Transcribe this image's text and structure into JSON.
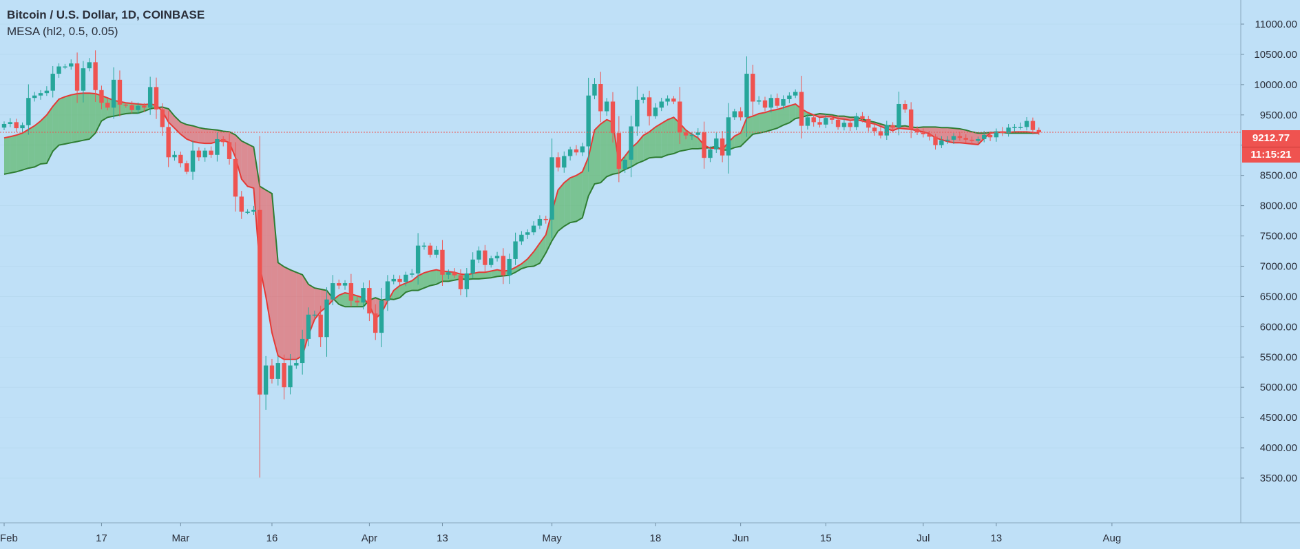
{
  "header": {
    "title": "Bitcoin / U.S. Dollar, 1D, COINBASE",
    "indicator": "MESA (hl2, 0.5, 0.05)"
  },
  "price_tag": {
    "price": "9212.77",
    "countdown": "11:15:21"
  },
  "colors": {
    "background": "#bfe0f7",
    "up": "#26a69a",
    "down": "#ef5350",
    "mama_line": "#e53935",
    "fama_line": "#2e7d32",
    "fill_bull": "#4caf50",
    "fill_bear": "#ef5350",
    "grid": "#a9cbe3"
  },
  "chart_data": {
    "type": "candlestick",
    "title": "Bitcoin / U.S. Dollar, 1D, COINBASE",
    "indicator": "MESA (hl2, 0.5, 0.05)",
    "ylim": [
      3200,
      11300
    ],
    "y_ticks": [
      "11000.00",
      "10500.00",
      "10000.00",
      "9500.00",
      "9000.00",
      "8500.00",
      "8000.00",
      "7500.00",
      "7000.00",
      "6500.00",
      "6000.00",
      "5500.00",
      "5000.00",
      "4500.00",
      "4000.00",
      "3500.00"
    ],
    "x_ticks": [
      {
        "label": "Feb",
        "day": 0
      },
      {
        "label": "17",
        "day": 16
      },
      {
        "label": "Mar",
        "day": 29
      },
      {
        "label": "16",
        "day": 44
      },
      {
        "label": "Apr",
        "day": 60
      },
      {
        "label": "13",
        "day": 72
      },
      {
        "label": "May",
        "day": 90
      },
      {
        "label": "18",
        "day": 107
      },
      {
        "label": "Jun",
        "day": 121
      },
      {
        "label": "15",
        "day": 135
      },
      {
        "label": "Jul",
        "day": 151
      },
      {
        "label": "13",
        "day": 163
      },
      {
        "label": "Aug",
        "day": 182
      }
    ],
    "x_range_days": [
      0,
      185
    ],
    "current_price": 9212.77,
    "closes": [
      9350,
      9380,
      9280,
      9330,
      9780,
      9820,
      9860,
      9900,
      10180,
      10300,
      10300,
      10350,
      9900,
      10270,
      10370,
      9910,
      9700,
      9620,
      10080,
      9670,
      9660,
      9580,
      9650,
      9620,
      9960,
      9590,
      9300,
      8800,
      8840,
      8700,
      8560,
      8910,
      8800,
      8910,
      8840,
      9100,
      9050,
      8770,
      8150,
      7900,
      7900,
      7930,
      4880,
      5360,
      5140,
      5400,
      5000,
      5360,
      5400,
      5800,
      6200,
      6200,
      5830,
      6450,
      6720,
      6680,
      6720,
      6430,
      6400,
      6640,
      6220,
      5900,
      6430,
      6750,
      6790,
      6740,
      6860,
      6880,
      7340,
      7340,
      7190,
      7270,
      6860,
      6900,
      6850,
      6620,
      6880,
      7110,
      7260,
      7020,
      7130,
      7170,
      6850,
      7120,
      7410,
      7520,
      7560,
      7670,
      7780,
      7770,
      8800,
      8630,
      8820,
      8930,
      8880,
      8980,
      9820,
      10010,
      9560,
      9720,
      9200,
      8610,
      8760,
      9310,
      9750,
      9790,
      9480,
      9620,
      9720,
      9770,
      9720,
      9210,
      9160,
      9170,
      9210,
      8790,
      8930,
      9110,
      8830,
      9460,
      9560,
      9460,
      10180,
      9720,
      9740,
      9620,
      9780,
      9650,
      9760,
      9820,
      9880,
      9320,
      9460,
      9380,
      9340,
      9450,
      9420,
      9300,
      9370,
      9300,
      9480,
      9430,
      9290,
      9230,
      9160,
      9330,
      9290,
      9680,
      9590,
      9270,
      9210,
      9180,
      9140,
      9000,
      9080,
      9090,
      9150,
      9120,
      9090,
      9070,
      9100,
      9170,
      9130,
      9230,
      9200,
      9290,
      9300,
      9300,
      9400,
      9250,
      9212
    ],
    "mama": [
      9120,
      9140,
      9165,
      9200,
      9260,
      9320,
      9400,
      9500,
      9640,
      9760,
      9800,
      9830,
      9850,
      9860,
      9860,
      9850,
      9820,
      9780,
      9740,
      9720,
      9700,
      9690,
      9680,
      9670,
      9680,
      9660,
      9560,
      9380,
      9280,
      9180,
      9100,
      9060,
      9040,
      9030,
      9030,
      9060,
      9080,
      9040,
      8800,
      8440,
      8320,
      8290,
      7000,
      6500,
      5900,
      5520,
      5460,
      5460,
      5460,
      5520,
      5860,
      6120,
      6250,
      6330,
      6440,
      6520,
      6560,
      6540,
      6510,
      6480,
      6360,
      6130,
      6230,
      6420,
      6600,
      6680,
      6720,
      6760,
      6840,
      6890,
      6920,
      6940,
      6920,
      6910,
      6900,
      6870,
      6860,
      6880,
      6900,
      6900,
      6920,
      6940,
      6920,
      6930,
      6980,
      7040,
      7120,
      7240,
      7380,
      7520,
      7900,
      8260,
      8380,
      8460,
      8500,
      8560,
      8800,
      9250,
      9350,
      9420,
      9380,
      8700,
      8820,
      8950,
      9040,
      9160,
      9220,
      9300,
      9360,
      9420,
      9460,
      9360,
      9250,
      9180,
      9120,
      9000,
      8950,
      8950,
      8930,
      9050,
      9150,
      9200,
      9450,
      9480,
      9520,
      9540,
      9570,
      9590,
      9620,
      9650,
      9680,
      9600,
      9540,
      9500,
      9460,
      9470,
      9470,
      9440,
      9430,
      9410,
      9420,
      9400,
      9370,
      9350,
      9310,
      9270,
      9240,
      9280,
      9270,
      9260,
      9240,
      9220,
      9190,
      9120,
      9090,
      9060,
      9040,
      9040,
      9030,
      9020,
      9010,
      9110,
      9200,
      9210,
      9220,
      9210,
      9220,
      9220,
      9220,
      9210,
      9200
    ],
    "fama": [
      8520,
      8540,
      8560,
      8590,
      8620,
      8640,
      8690,
      8700,
      8900,
      9000,
      9020,
      9040,
      9060,
      9080,
      9100,
      9200,
      9400,
      9460,
      9480,
      9500,
      9520,
      9530,
      9530,
      9560,
      9600,
      9620,
      9630,
      9600,
      9480,
      9380,
      9340,
      9320,
      9290,
      9270,
      9260,
      9250,
      9230,
      9220,
      9170,
      9070,
      9020,
      8970,
      8320,
      8260,
      8200,
      7060,
      6990,
      6940,
      6900,
      6860,
      6700,
      6640,
      6620,
      6600,
      6470,
      6370,
      6330,
      6330,
      6330,
      6330,
      6440,
      6480,
      6440,
      6460,
      6450,
      6480,
      6570,
      6600,
      6600,
      6640,
      6680,
      6700,
      6750,
      6750,
      6770,
      6790,
      6780,
      6790,
      6790,
      6800,
      6810,
      6830,
      6840,
      6850,
      6900,
      6960,
      6990,
      7000,
      7050,
      7220,
      7420,
      7580,
      7660,
      7720,
      7740,
      7800,
      8160,
      8360,
      8380,
      8480,
      8520,
      8540,
      8600,
      8640,
      8700,
      8740,
      8790,
      8800,
      8800,
      8840,
      8860,
      8900,
      8920,
      8940,
      8940,
      8950,
      8960,
      8980,
      8920,
      8920,
      8960,
      8980,
      9080,
      9180,
      9200,
      9220,
      9250,
      9280,
      9330,
      9370,
      9440,
      9460,
      9490,
      9500,
      9520,
      9510,
      9500,
      9480,
      9480,
      9460,
      9460,
      9430,
      9400,
      9380,
      9350,
      9320,
      9320,
      9310,
      9320,
      9300,
      9290,
      9300,
      9300,
      9300,
      9290,
      9290,
      9280,
      9270,
      9250,
      9220,
      9200,
      9200,
      9210,
      9210,
      9210,
      9200,
      9200,
      9200,
      9200,
      9200,
      9200
    ]
  }
}
